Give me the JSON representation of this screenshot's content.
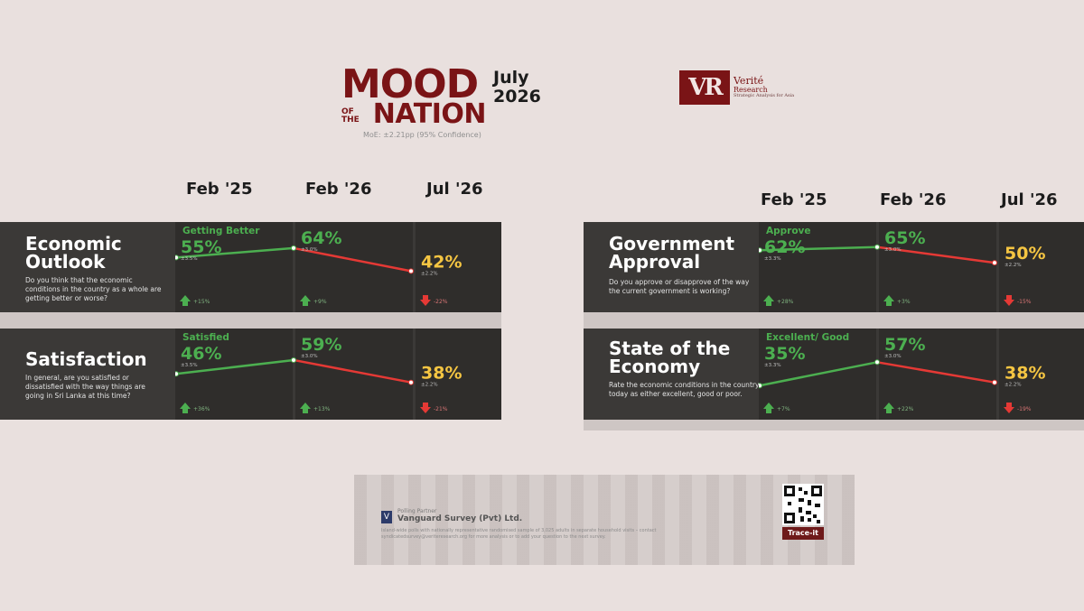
{
  "header": {
    "title_line1": "MOOD",
    "title_of_the": "OF THE",
    "title_line2": "NATION",
    "month": "July",
    "year": "2026",
    "moe": "MoE: ±2.21pp (95% Confidence)",
    "logo_mark": "VR",
    "logo_line1": "Verité",
    "logo_line2": "Research",
    "logo_tagline": "Strategic Analysis for Asia"
  },
  "columns": {
    "left": [
      "Feb '25",
      "Feb '26",
      "Jul '26"
    ],
    "right": [
      "Feb '25",
      "Feb '26",
      "Jul '26"
    ]
  },
  "colors": {
    "green": "#4caf50",
    "red": "#e53935",
    "yellow": "#f5c542",
    "panel": "#3b3937",
    "brand": "#7a1416"
  },
  "chart_data": [
    {
      "type": "line",
      "title": "Economic Outlook",
      "question": "Do you think that the economic conditions in the country as a whole are getting better or worse?",
      "series_label": "Getting Better",
      "x": [
        "Feb '25",
        "Feb '26",
        "Jul '26"
      ],
      "values": [
        55,
        64,
        42
      ],
      "value_labels": [
        "55%",
        "64%",
        "42%"
      ],
      "moe_labels": [
        "±3.5%",
        "±3.0%",
        "±2.2%"
      ],
      "change_labels": [
        "+15%",
        "+9%",
        "-22%"
      ]
    },
    {
      "type": "line",
      "title": "Satisfaction",
      "question": "In general, are you satisfied or dissatisfied with the way things are going in Sri Lanka at this time?",
      "series_label": "Satisfied",
      "x": [
        "Feb '25",
        "Feb '26",
        "Jul '26"
      ],
      "values": [
        46,
        59,
        38
      ],
      "value_labels": [
        "46%",
        "59%",
        "38%"
      ],
      "moe_labels": [
        "±3.5%",
        "±3.0%",
        "±2.2%"
      ],
      "change_labels": [
        "+36%",
        "+13%",
        "-21%"
      ]
    },
    {
      "type": "line",
      "title": "Government Approval",
      "question": "Do you approve or disapprove of the way the current government is working?",
      "series_label": "Approve",
      "x": [
        "Feb '25",
        "Feb '26",
        "Jul '26"
      ],
      "values": [
        62,
        65,
        50
      ],
      "value_labels": [
        "62%",
        "65%",
        "50%"
      ],
      "moe_labels": [
        "±3.3%",
        "±3.0%",
        "±2.2%"
      ],
      "change_labels": [
        "+28%",
        "+3%",
        "-15%"
      ]
    },
    {
      "type": "line",
      "title": "State of the Economy",
      "question": "Rate the economic conditions in the country today as either excellent, good or poor.",
      "series_label": "Excellent/ Good",
      "x": [
        "Feb '25",
        "Feb '26",
        "Jul '26"
      ],
      "values": [
        35,
        57,
        38
      ],
      "value_labels": [
        "35%",
        "57%",
        "38%"
      ],
      "moe_labels": [
        "±3.3%",
        "±3.0%",
        "±2.2%"
      ],
      "change_labels": [
        "+7%",
        "+22%",
        "-19%"
      ]
    }
  ],
  "footer": {
    "partner_label": "Polling Partner",
    "partner_name": "Vanguard Survey (Pvt) Ltd.",
    "note": "Island-wide polls with nationally representative randomised sample of 3,025 adults in separate household visits – contact syndicatedsurvey@veriteresearch.org for more analysis or to add your question to the next survey.",
    "qr_label": "Trace-it"
  }
}
